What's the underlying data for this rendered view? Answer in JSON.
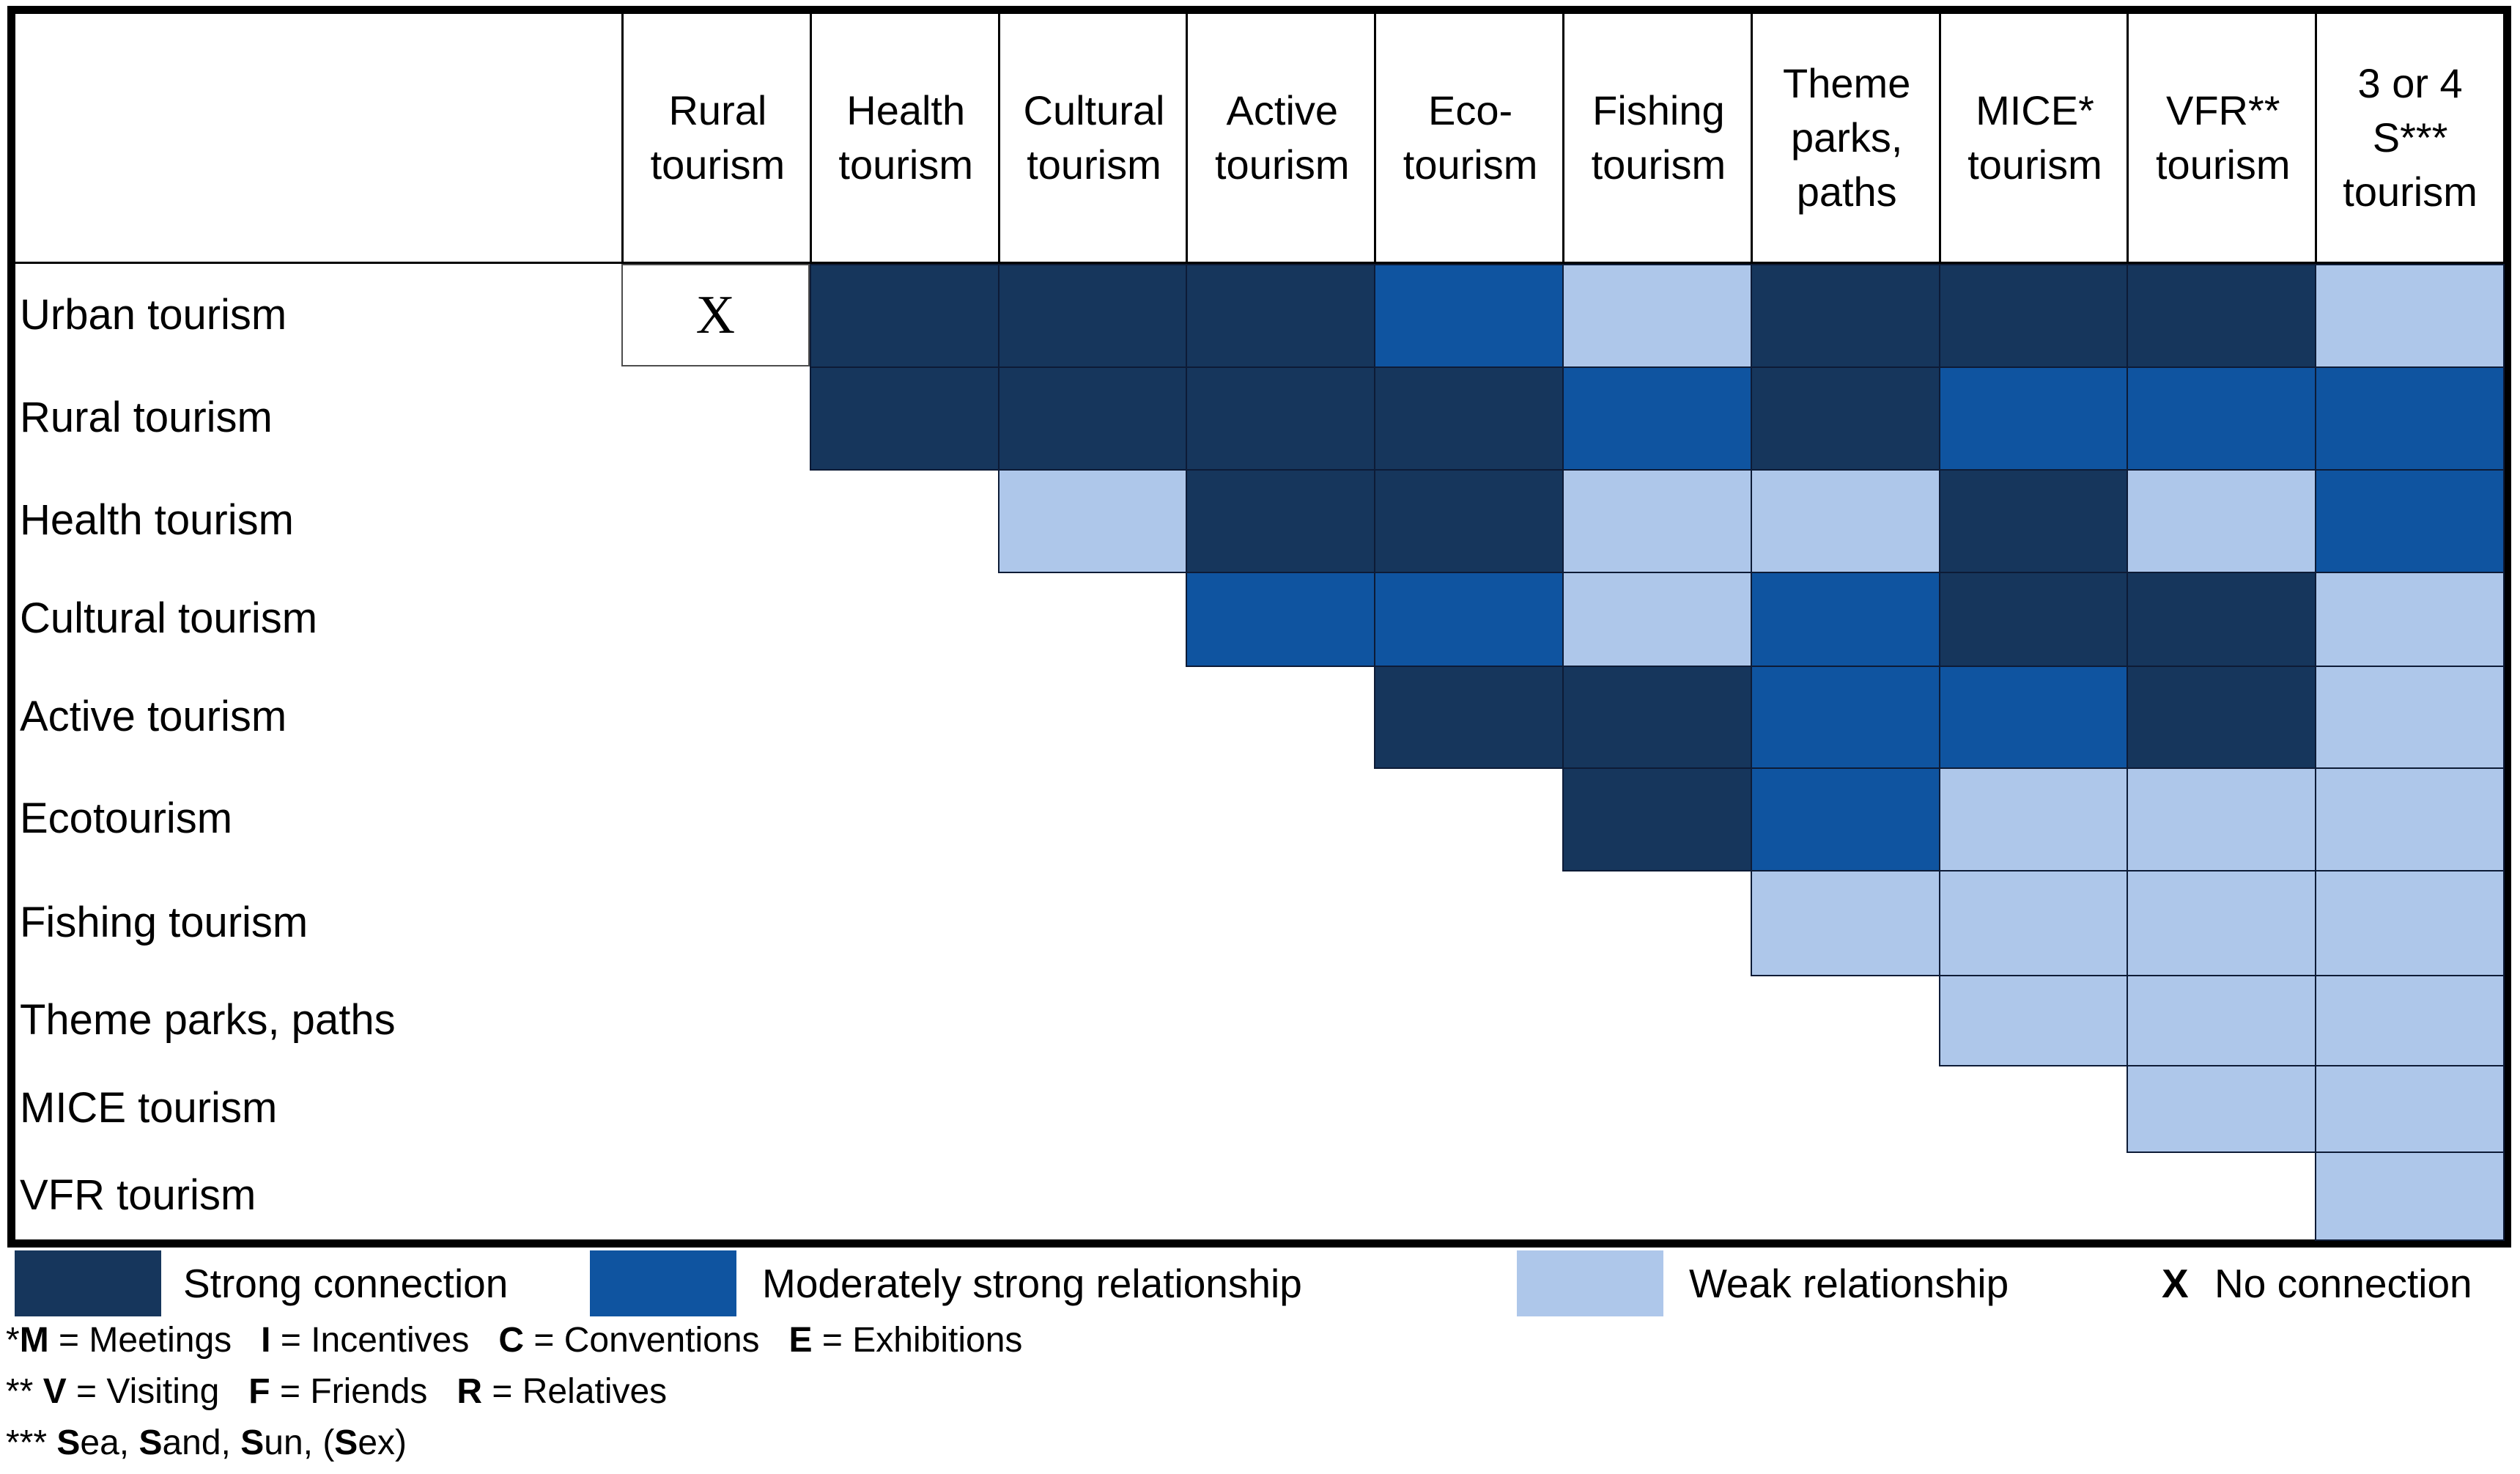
{
  "matrix": {
    "columns": [
      "Rural tourism",
      "Health tourism",
      "Cultural tourism",
      "Active tourism",
      "Eco-tourism",
      "Fishing tourism",
      "Theme parks, paths",
      "MICE* tourism",
      "VFR** tourism",
      "3 or 4 S*** tourism"
    ],
    "rows": [
      {
        "label": "Urban tourism",
        "cells": [
          "none",
          "strong",
          "strong",
          "strong",
          "moderate",
          "weak",
          "strong",
          "strong",
          "strong",
          "weak"
        ]
      },
      {
        "label": "Rural tourism",
        "cells": [
          null,
          "strong",
          "strong",
          "strong",
          "strong",
          "moderate",
          "strong",
          "moderate",
          "moderate",
          "moderate"
        ]
      },
      {
        "label": "Health tourism",
        "cells": [
          null,
          null,
          "weak",
          "strong",
          "strong",
          "weak",
          "weak",
          "strong",
          "weak",
          "moderate"
        ]
      },
      {
        "label": "Cultural tourism",
        "cells": [
          null,
          null,
          null,
          "moderate",
          "moderate",
          "weak",
          "moderate",
          "strong",
          "strong",
          "weak"
        ]
      },
      {
        "label": "Active tourism",
        "cells": [
          null,
          null,
          null,
          null,
          "strong",
          "strong",
          "moderate",
          "moderate",
          "strong",
          "weak"
        ]
      },
      {
        "label": "Ecotourism",
        "cells": [
          null,
          null,
          null,
          null,
          null,
          "strong",
          "moderate",
          "weak",
          "weak",
          "weak"
        ]
      },
      {
        "label": "Fishing tourism",
        "cells": [
          null,
          null,
          null,
          null,
          null,
          null,
          "weak",
          "weak",
          "weak",
          "weak"
        ]
      },
      {
        "label": "Theme parks, paths",
        "cells": [
          null,
          null,
          null,
          null,
          null,
          null,
          null,
          "weak",
          "weak",
          "weak"
        ]
      },
      {
        "label": "MICE tourism",
        "cells": [
          null,
          null,
          null,
          null,
          null,
          null,
          null,
          null,
          "weak",
          "weak"
        ]
      },
      {
        "label": "VFR tourism",
        "cells": [
          null,
          null,
          null,
          null,
          null,
          null,
          null,
          null,
          null,
          "weak"
        ]
      }
    ],
    "no_connection_symbol": "X"
  },
  "colors": {
    "strong": "#16365C",
    "moderate": "#0F54A0",
    "weak": "#AEC7EA"
  },
  "legend": {
    "items": [
      {
        "type": "swatch",
        "color_key": "strong",
        "label": "Strong connection"
      },
      {
        "type": "swatch",
        "color_key": "moderate",
        "label": "Moderately strong relationship"
      },
      {
        "type": "swatch",
        "color_key": "weak",
        "label": "Weak relationship"
      },
      {
        "type": "symbol",
        "symbol": "X",
        "label": "No connection"
      }
    ]
  },
  "footnotes": [
    {
      "segments": [
        {
          "t": "*",
          "b": false
        },
        {
          "t": "M",
          "b": true
        },
        {
          "t": " = Meetings   ",
          "b": false
        },
        {
          "t": "I",
          "b": true
        },
        {
          "t": " = Incentives   ",
          "b": false
        },
        {
          "t": "C",
          "b": true
        },
        {
          "t": " = Conventions   ",
          "b": false
        },
        {
          "t": "E",
          "b": true
        },
        {
          "t": " = Exhibitions",
          "b": false
        }
      ]
    },
    {
      "segments": [
        {
          "t": "** ",
          "b": false
        },
        {
          "t": "V",
          "b": true
        },
        {
          "t": " = Visiting   ",
          "b": false
        },
        {
          "t": "F",
          "b": true
        },
        {
          "t": " = Friends   ",
          "b": false
        },
        {
          "t": "R",
          "b": true
        },
        {
          "t": " = Relatives",
          "b": false
        }
      ]
    },
    {
      "segments": [
        {
          "t": "*** ",
          "b": false
        },
        {
          "t": "S",
          "b": true
        },
        {
          "t": "ea, ",
          "b": false
        },
        {
          "t": "S",
          "b": true
        },
        {
          "t": "and, ",
          "b": false
        },
        {
          "t": "S",
          "b": true
        },
        {
          "t": "un, (",
          "b": false
        },
        {
          "t": "S",
          "b": true
        },
        {
          "t": "ex)",
          "b": false
        }
      ]
    }
  ]
}
